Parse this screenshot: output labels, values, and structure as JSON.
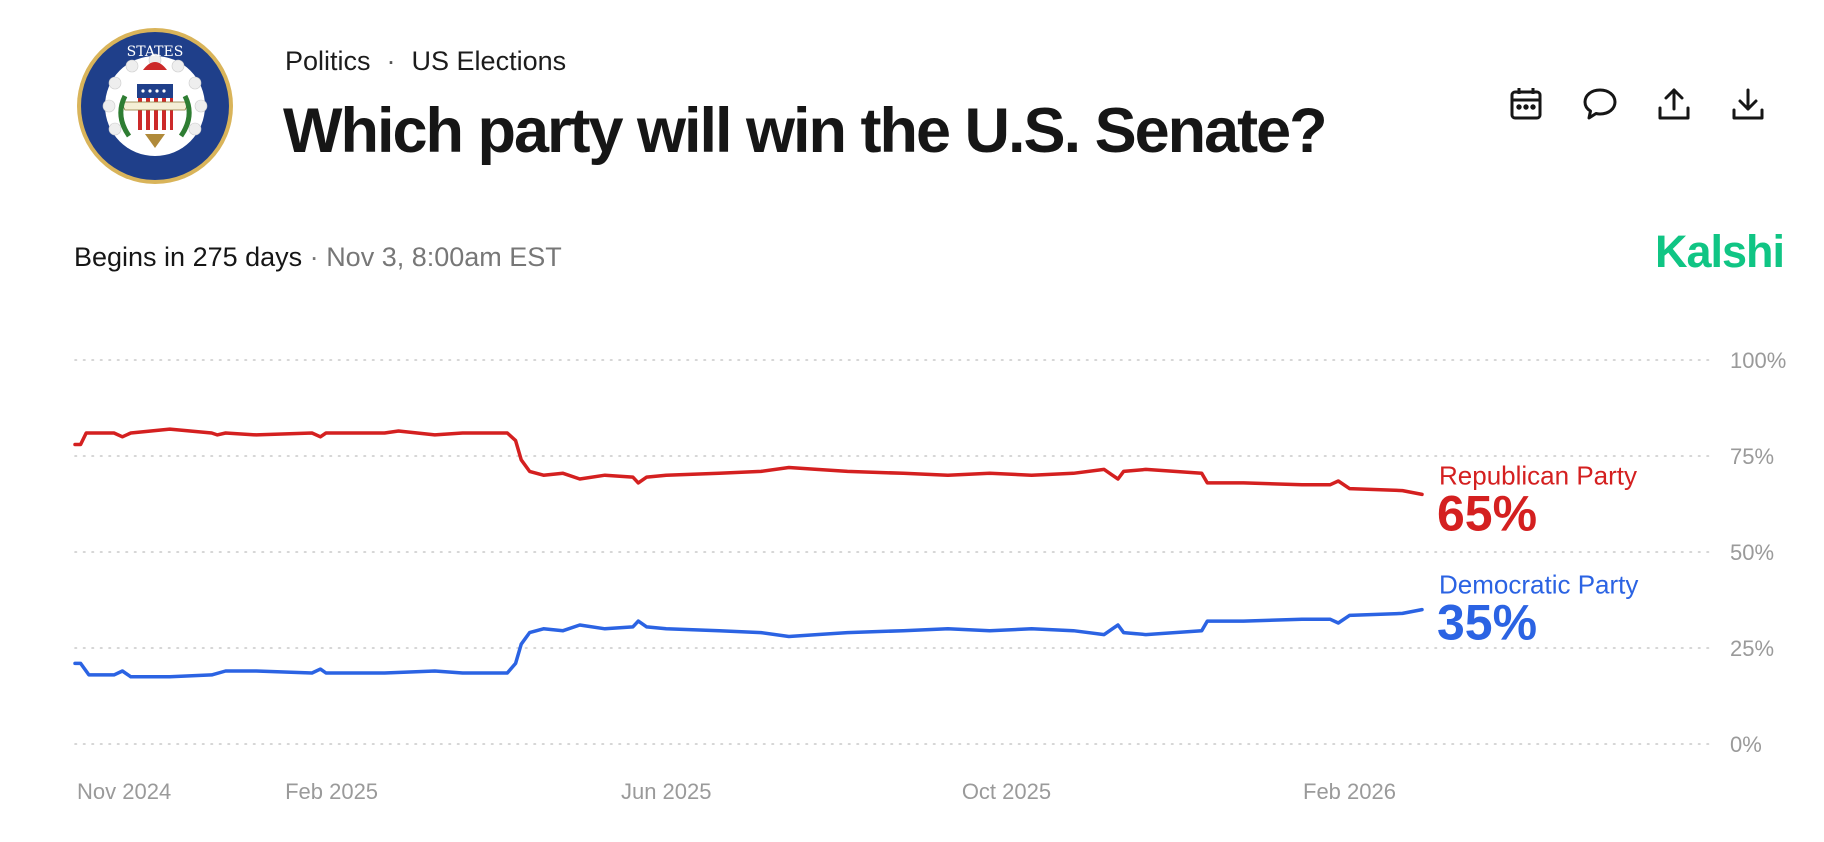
{
  "header": {
    "breadcrumb": [
      "Politics",
      "US Elections"
    ],
    "title": "Which party will win the U.S. Senate?",
    "seal_icon": "us-senate-seal-icon",
    "actions": [
      {
        "name": "calendar",
        "icon": "calendar-icon"
      },
      {
        "name": "comment",
        "icon": "comment-icon"
      },
      {
        "name": "share",
        "icon": "share-icon"
      },
      {
        "name": "download",
        "icon": "download-icon"
      }
    ]
  },
  "meta": {
    "begins": "Begins in 275 days",
    "separator": "·",
    "date": "Nov 3, 8:00am EST",
    "brand": "Kalshi",
    "brand_color": "#10c584"
  },
  "chart_data": {
    "type": "line",
    "x_axis": {
      "min": "2024-11-01",
      "max": "2026-02-27",
      "ticks": [
        {
          "date": "2024-11-01",
          "label": "Nov 2024"
        },
        {
          "date": "2025-02-01",
          "label": "Feb 2025"
        },
        {
          "date": "2025-06-01",
          "label": "Jun 2025"
        },
        {
          "date": "2025-10-01",
          "label": "Oct 2025"
        },
        {
          "date": "2026-02-01",
          "label": "Feb 2026"
        }
      ]
    },
    "y_axis": {
      "min": 0,
      "max": 100,
      "ticks": [
        {
          "value": 100,
          "label": "100%"
        },
        {
          "value": 75,
          "label": "75%"
        },
        {
          "value": 50,
          "label": "50%"
        },
        {
          "value": 25,
          "label": "25%"
        },
        {
          "value": 0,
          "label": "0%"
        }
      ]
    },
    "grid": true,
    "series": [
      {
        "name": "Republican Party",
        "color": "#d42020",
        "value_label": "65%",
        "points": [
          [
            "2024-11-01",
            78
          ],
          [
            "2024-11-03",
            78
          ],
          [
            "2024-11-05",
            81
          ],
          [
            "2024-11-15",
            81
          ],
          [
            "2024-11-18",
            80
          ],
          [
            "2024-11-21",
            81
          ],
          [
            "2024-12-05",
            82
          ],
          [
            "2024-12-20",
            81
          ],
          [
            "2024-12-22",
            80.5
          ],
          [
            "2024-12-25",
            81
          ],
          [
            "2025-01-05",
            80.5
          ],
          [
            "2025-01-25",
            81
          ],
          [
            "2025-01-28",
            80
          ],
          [
            "2025-01-30",
            81
          ],
          [
            "2025-02-20",
            81
          ],
          [
            "2025-02-25",
            81.5
          ],
          [
            "2025-03-10",
            80.5
          ],
          [
            "2025-03-20",
            81
          ],
          [
            "2025-04-05",
            81
          ],
          [
            "2025-04-08",
            79
          ],
          [
            "2025-04-10",
            74
          ],
          [
            "2025-04-13",
            71
          ],
          [
            "2025-04-18",
            70
          ],
          [
            "2025-04-25",
            70.5
          ],
          [
            "2025-05-01",
            69
          ],
          [
            "2025-05-10",
            70
          ],
          [
            "2025-05-20",
            69.5
          ],
          [
            "2025-05-22",
            68
          ],
          [
            "2025-05-25",
            69.5
          ],
          [
            "2025-06-01",
            70
          ],
          [
            "2025-06-20",
            70.5
          ],
          [
            "2025-07-05",
            71
          ],
          [
            "2025-07-15",
            72
          ],
          [
            "2025-07-25",
            71.5
          ],
          [
            "2025-08-05",
            71
          ],
          [
            "2025-08-25",
            70.5
          ],
          [
            "2025-09-10",
            70
          ],
          [
            "2025-09-25",
            70.5
          ],
          [
            "2025-10-10",
            70
          ],
          [
            "2025-10-25",
            70.5
          ],
          [
            "2025-11-05",
            71.5
          ],
          [
            "2025-11-08",
            70
          ],
          [
            "2025-11-10",
            69
          ],
          [
            "2025-11-12",
            71
          ],
          [
            "2025-11-20",
            71.5
          ],
          [
            "2025-12-10",
            70.5
          ],
          [
            "2025-12-12",
            68
          ],
          [
            "2025-12-25",
            68
          ],
          [
            "2026-01-15",
            67.5
          ],
          [
            "2026-01-25",
            67.5
          ],
          [
            "2026-01-28",
            68.5
          ],
          [
            "2026-02-01",
            66.5
          ],
          [
            "2026-02-20",
            66
          ],
          [
            "2026-02-27",
            65
          ]
        ]
      },
      {
        "name": "Democratic Party",
        "color": "#2b63e3",
        "value_label": "35%",
        "points": [
          [
            "2024-11-01",
            21
          ],
          [
            "2024-11-03",
            21
          ],
          [
            "2024-11-06",
            18
          ],
          [
            "2024-11-15",
            18
          ],
          [
            "2024-11-18",
            19
          ],
          [
            "2024-11-21",
            17.5
          ],
          [
            "2024-12-05",
            17.5
          ],
          [
            "2024-12-20",
            18
          ],
          [
            "2024-12-25",
            19
          ],
          [
            "2025-01-05",
            19
          ],
          [
            "2025-01-25",
            18.5
          ],
          [
            "2025-01-28",
            19.5
          ],
          [
            "2025-01-30",
            18.5
          ],
          [
            "2025-02-20",
            18.5
          ],
          [
            "2025-03-10",
            19
          ],
          [
            "2025-03-20",
            18.5
          ],
          [
            "2025-04-05",
            18.5
          ],
          [
            "2025-04-08",
            21
          ],
          [
            "2025-04-10",
            26
          ],
          [
            "2025-04-13",
            29
          ],
          [
            "2025-04-18",
            30
          ],
          [
            "2025-04-25",
            29.5
          ],
          [
            "2025-05-01",
            31
          ],
          [
            "2025-05-10",
            30
          ],
          [
            "2025-05-20",
            30.5
          ],
          [
            "2025-05-22",
            32
          ],
          [
            "2025-05-25",
            30.5
          ],
          [
            "2025-06-01",
            30
          ],
          [
            "2025-06-20",
            29.5
          ],
          [
            "2025-07-05",
            29
          ],
          [
            "2025-07-15",
            28
          ],
          [
            "2025-07-25",
            28.5
          ],
          [
            "2025-08-05",
            29
          ],
          [
            "2025-08-25",
            29.5
          ],
          [
            "2025-09-10",
            30
          ],
          [
            "2025-09-25",
            29.5
          ],
          [
            "2025-10-10",
            30
          ],
          [
            "2025-10-25",
            29.5
          ],
          [
            "2025-11-05",
            28.5
          ],
          [
            "2025-11-08",
            30
          ],
          [
            "2025-11-10",
            31
          ],
          [
            "2025-11-12",
            29
          ],
          [
            "2025-11-20",
            28.5
          ],
          [
            "2025-12-10",
            29.5
          ],
          [
            "2025-12-12",
            32
          ],
          [
            "2025-12-25",
            32
          ],
          [
            "2026-01-15",
            32.5
          ],
          [
            "2026-01-25",
            32.5
          ],
          [
            "2026-01-28",
            31.5
          ],
          [
            "2026-02-01",
            33.5
          ],
          [
            "2026-02-20",
            34
          ],
          [
            "2026-02-27",
            35
          ]
        ]
      }
    ]
  }
}
